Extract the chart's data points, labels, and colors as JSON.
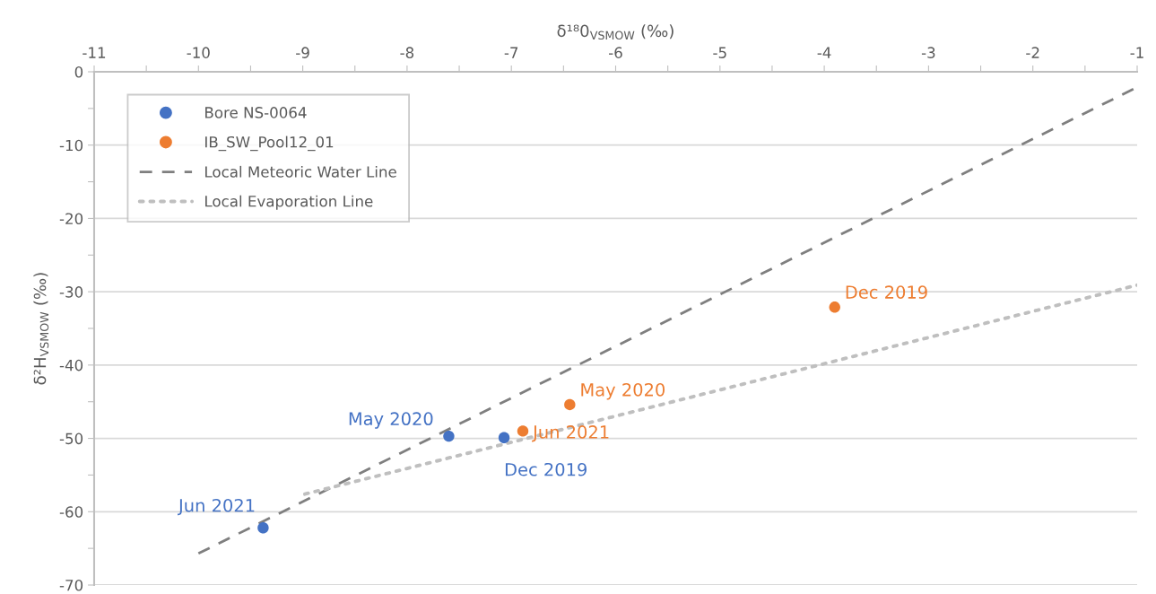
{
  "chart_data": {
    "type": "scatter",
    "xlabel": "δ¹⁸0$_{VSMOW}$ (‰)",
    "ylabel": "δ²H$_{VSMOW}$ (‰)",
    "xlim": [
      -11,
      -1
    ],
    "ylim": [
      -70,
      0
    ],
    "xticks": [
      -11,
      {
        "value": -10.5,
        "label": null
      },
      -10,
      {
        "value": -9.5,
        "label": null
      },
      -9,
      {
        "value": -8.5,
        "label": null
      },
      -8,
      {
        "value": -7.5,
        "label": null
      },
      -7,
      {
        "value": -6.5,
        "label": null
      },
      -6,
      {
        "value": -5.5,
        "label": null
      },
      -5,
      {
        "value": -4.5,
        "label": null
      },
      -4,
      {
        "value": -3.5,
        "label": null
      },
      -3,
      {
        "value": -2.5,
        "label": null
      },
      -2,
      {
        "value": -1.5,
        "label": null
      },
      -1
    ],
    "yticks": [
      0,
      {
        "value": -5,
        "label": null
      },
      -10,
      {
        "value": -15,
        "label": null
      },
      -20,
      {
        "value": -25,
        "label": null
      },
      -30,
      {
        "value": -35,
        "label": null
      },
      -40,
      {
        "value": -45,
        "label": null
      },
      -50,
      {
        "value": -55,
        "label": null
      },
      -60,
      {
        "value": -65,
        "label": null
      },
      -70
    ],
    "grid": "y",
    "legend": "top left",
    "marker": "circle",
    "series": [
      {
        "name": "Bore NS-0064",
        "color": "#4472c4",
        "x": [
          -7.07,
          -7.6,
          -9.38
        ],
        "values": [
          -49.9,
          -49.7,
          -62.2
        ]
      },
      {
        "name": "IB_SW_Pool12_01",
        "color": "#ed7d31",
        "x": [
          -3.9,
          -6.44,
          -6.89
        ],
        "values": [
          -32.1,
          -45.4,
          -49.0
        ]
      },
      {
        "name": "Local Meteoric Water Line",
        "type": "line",
        "line_style": "dashed",
        "marker": "none",
        "color": "#7f7f7f",
        "x": [
          -10.0,
          -1.0
        ],
        "values": [
          -65.7,
          -2.1
        ]
      },
      {
        "name": "Local Evaporation Line",
        "type": "line",
        "line_style": "dotted",
        "marker": "none",
        "color": "#bfbfbf",
        "x": [
          -8.98,
          -1.0
        ],
        "values": [
          -57.6,
          -29.1
        ]
      }
    ],
    "annotations": [
      {
        "text": "Dec 2019",
        "x": -7.07,
        "y": -49.9
      },
      {
        "text": "May 2020",
        "x": -7.6,
        "y": -49.7
      },
      {
        "text": "Jun 2021",
        "x": -9.38,
        "y": -62.2
      },
      {
        "text": "Dec 2019",
        "x": -3.9,
        "y": -32.1
      },
      {
        "text": "May 2020",
        "x": -6.44,
        "y": -45.4
      },
      {
        "text": "Jun 2021",
        "x": -6.89,
        "y": -49.0
      }
    ]
  }
}
